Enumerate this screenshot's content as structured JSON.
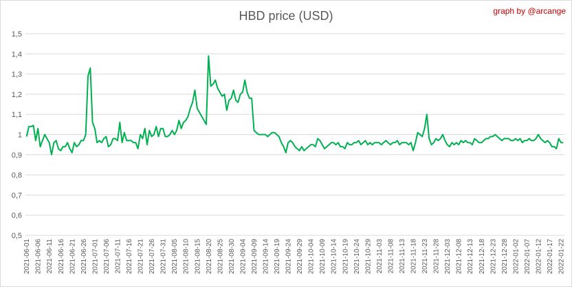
{
  "chart_data": {
    "type": "line",
    "title": "HBD price (USD)",
    "credit": "graph by @arcange",
    "ylim": [
      0.5,
      1.5
    ],
    "y_ticks": [
      "0,5",
      "0,6",
      "0,7",
      "0,8",
      "0,9",
      "1",
      "1,1",
      "1,2",
      "1,3",
      "1,4",
      "1,5"
    ],
    "x_ticks": [
      "2021-06-01",
      "2021-06-06",
      "2021-06-11",
      "2021-06-16",
      "2021-06-21",
      "2021-06-26",
      "2021-07-01",
      "2021-07-06",
      "2021-07-11",
      "2021-07-16",
      "2021-07-21",
      "2021-07-26",
      "2021-07-31",
      "2021-08-05",
      "2021-08-10",
      "2021-08-15",
      "2021-08-20",
      "2021-08-25",
      "2021-08-30",
      "2021-09-04",
      "2021-09-09",
      "2021-09-14",
      "2021-09-19",
      "2021-09-24",
      "2021-09-29",
      "2021-10-04",
      "2021-10-09",
      "2021-10-14",
      "2021-10-19",
      "2021-10-24",
      "2021-10-29",
      "2021-11-03",
      "2021-11-08",
      "2021-11-13",
      "2021-11-18",
      "2021-11-23",
      "2021-11-28",
      "2021-12-03",
      "2021-12-08",
      "2021-12-13",
      "2021-12-18",
      "2021-12-23",
      "2021-12-28",
      "2022-01-02",
      "2022-01-07",
      "2022-01-12",
      "2022-01-17",
      "2022-01-22"
    ],
    "grid": true,
    "legend": "none",
    "series_color": "#00b050",
    "series": [
      {
        "values": [
          0.99,
          1.04,
          1.04,
          1.045,
          0.97,
          1.03,
          0.94,
          0.97,
          1.0,
          0.98,
          0.96,
          0.9,
          0.96,
          0.97,
          0.93,
          0.92,
          0.94,
          0.94,
          0.96,
          0.93,
          0.91,
          0.96,
          0.94,
          0.95,
          0.97,
          0.97,
          1.0,
          1.29,
          1.33,
          1.06,
          1.03,
          0.96,
          0.97,
          0.96,
          0.98,
          0.99,
          0.94,
          0.95,
          0.98,
          0.98,
          0.97,
          1.06,
          0.96,
          1.01,
          0.97,
          0.97,
          0.97,
          0.96,
          0.96,
          0.93,
          1.0,
          0.98,
          1.03,
          0.95,
          1.02,
          0.99,
          1.0,
          1.04,
          0.99,
          1.03,
          1.03,
          0.99,
          0.99,
          1.0,
          1.02,
          1.0,
          1.02,
          1.07,
          1.03,
          1.06,
          1.07,
          1.09,
          1.13,
          1.16,
          1.22,
          1.13,
          1.11,
          1.09,
          1.07,
          1.05,
          1.39,
          1.24,
          1.25,
          1.27,
          1.23,
          1.21,
          1.19,
          1.2,
          1.12,
          1.17,
          1.18,
          1.22,
          1.17,
          1.16,
          1.2,
          1.21,
          1.27,
          1.21,
          1.18,
          1.18,
          1.02,
          1.01,
          1.0,
          1.0,
          1.0,
          1.0,
          0.99,
          1.0,
          1.01,
          1.01,
          1.0,
          0.99,
          0.96,
          0.94,
          0.91,
          0.96,
          0.97,
          0.96,
          0.94,
          0.93,
          0.92,
          0.94,
          0.92,
          0.93,
          0.94,
          0.95,
          0.95,
          0.94,
          0.98,
          0.97,
          0.95,
          0.93,
          0.94,
          0.95,
          0.96,
          0.96,
          0.95,
          0.96,
          0.94,
          0.94,
          0.93,
          0.96,
          0.95,
          0.95,
          0.96,
          0.96,
          0.97,
          0.95,
          0.96,
          0.97,
          0.95,
          0.96,
          0.95,
          0.96,
          0.96,
          0.96,
          0.95,
          0.96,
          0.97,
          0.96,
          0.95,
          0.96,
          0.96,
          0.97,
          0.95,
          0.96,
          0.96,
          0.96,
          0.95,
          0.96,
          0.92,
          0.96,
          1.01,
          1.0,
          0.99,
          1.03,
          1.1,
          0.98,
          0.95,
          0.96,
          0.98,
          0.97,
          0.98,
          1.0,
          0.97,
          0.95,
          0.94,
          0.96,
          0.95,
          0.96,
          0.95,
          0.97,
          0.96,
          0.97,
          0.96,
          0.96,
          0.95,
          0.98,
          0.97,
          0.96,
          0.96,
          0.97,
          0.98,
          0.98,
          0.99,
          0.99,
          1.0,
          0.99,
          0.98,
          0.97,
          0.98,
          0.98,
          0.98,
          0.97,
          0.97,
          0.98,
          0.97,
          0.98,
          0.96,
          0.97,
          0.97,
          0.98,
          0.97,
          0.97,
          0.98,
          1.0,
          0.98,
          0.97,
          0.96,
          0.97,
          0.96,
          0.94,
          0.94,
          0.93,
          0.98,
          0.96,
          0.96
        ]
      }
    ]
  }
}
